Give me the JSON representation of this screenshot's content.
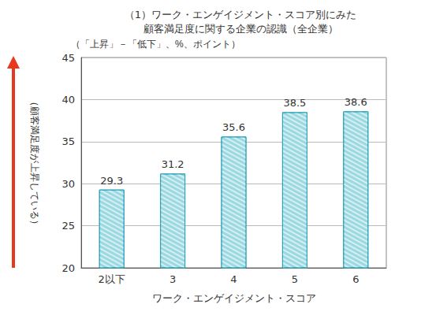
{
  "chart_data": {
    "type": "bar",
    "title": "（1）ワーク・エンゲイジメント・スコア別にみた\n顧客満足度に関する企業の認識（全企業）",
    "subtitle": "（「上昇」－「低下」、%、ポイント）",
    "xlabel": "ワーク・エンゲイジメント・スコア",
    "ylabel": "（顧客満足度が上昇している）",
    "categories": [
      "2以下",
      "3",
      "4",
      "5",
      "6"
    ],
    "values": [
      29.3,
      31.2,
      35.6,
      38.5,
      38.6
    ],
    "color": "#9ad8e2",
    "ylim": [
      20,
      45
    ],
    "yticks": [
      20,
      25,
      30,
      35,
      40,
      45
    ],
    "grid": true,
    "data_labels": true
  }
}
